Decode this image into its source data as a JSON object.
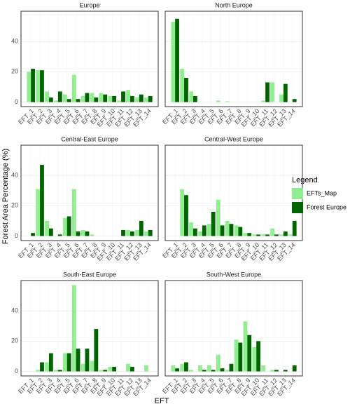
{
  "chart_data": {
    "type": "bar",
    "xlabel": "EFT",
    "ylabel": "Forest Area Percentage (%)",
    "legend_title": "Legend",
    "categories": [
      "EFT_1",
      "EFT_2",
      "EFT_3",
      "EFT_4",
      "EFT_5",
      "EFT_6",
      "EFT_7",
      "EFT_8",
      "EFT_9",
      "EFT_10",
      "EFT_11",
      "EFT_12",
      "EFT_13",
      "EFT_14"
    ],
    "series": [
      {
        "name": "EFTs_Map",
        "color": "#90ee90"
      },
      {
        "name": "Forest Europe",
        "color": "#006400"
      }
    ],
    "ylim": [
      -3,
      60
    ],
    "yticks": [
      0,
      20,
      40
    ],
    "grid": true,
    "panels": [
      {
        "title": "Europe",
        "series": [
          {
            "values": [
              20,
              21,
              7,
              1,
              5,
              18,
              4,
              6,
              6,
              4,
              1,
              8,
              3,
              3
            ]
          },
          {
            "values": [
              22,
              21,
              3,
              7,
              2,
              2,
              6,
              3,
              5,
              4,
              7,
              4,
              5,
              4
            ]
          }
        ]
      },
      {
        "title": "North Europe",
        "series": [
          {
            "values": [
              53,
              22,
              7,
              0,
              0,
              1,
              0.5,
              0,
              0,
              0,
              1,
              13,
              5,
              0
            ]
          },
          {
            "values": [
              55,
              16,
              4,
              0,
              0,
              0,
              0,
              0,
              0,
              0,
              13,
              0,
              12,
              2
            ]
          }
        ]
      },
      {
        "title": "Central-East Europe",
        "series": [
          {
            "values": [
              0,
              31,
              10,
              0,
              12,
              31,
              4,
              1,
              0,
              0,
              0,
              4,
              4,
              3
            ]
          },
          {
            "values": [
              2,
              47,
              5,
              1,
              13,
              3,
              3,
              0,
              0,
              0,
              4,
              3,
              10,
              4
            ]
          }
        ]
      },
      {
        "title": "Central-West Europe",
        "series": [
          {
            "values": [
              0,
              31,
              9,
              3,
              8,
              24,
              10,
              7,
              2,
              1,
              1,
              5,
              1,
              1
            ]
          },
          {
            "values": [
              0,
              27,
              5,
              7,
              16,
              7,
              8,
              6,
              2,
              1,
              1,
              1,
              3,
              10
            ]
          }
        ]
      },
      {
        "title": "South-East Europe",
        "series": [
          {
            "values": [
              0,
              1,
              6,
              1,
              12,
              57,
              5,
              7,
              1,
              3,
              0,
              5,
              0,
              4
            ]
          },
          {
            "values": [
              0,
              6,
              12,
              1,
              12,
              15,
              15,
              28,
              1,
              3,
              0,
              3,
              0,
              0
            ]
          }
        ]
      },
      {
        "title": "South-West Europe",
        "series": [
          {
            "values": [
              4,
              5,
              1,
              4,
              4,
              11,
              1,
              21,
              33,
              16,
              4,
              1,
              0,
              0
            ]
          },
          {
            "values": [
              2,
              6,
              0,
              1,
              1,
              2,
              5,
              19,
              24,
              20,
              0,
              1,
              1,
              4
            ]
          }
        ]
      }
    ]
  }
}
